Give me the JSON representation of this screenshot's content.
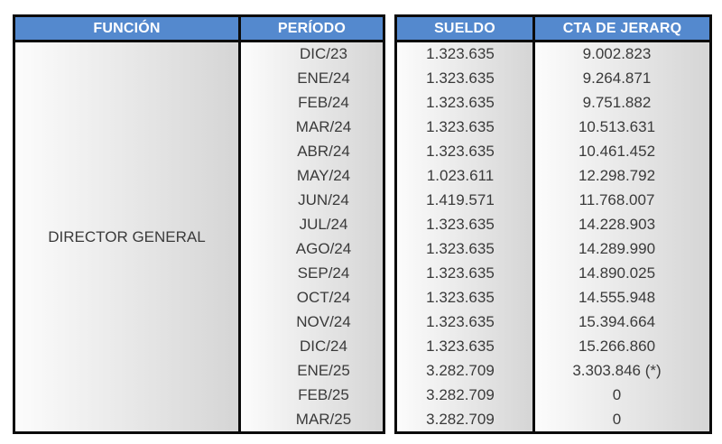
{
  "colors": {
    "header-bg": "#5489ce",
    "header-text": "#ffffff",
    "border": "#0b0b0b",
    "body-text": "#3a3a3a",
    "cell-grad-start": "#fcfcfc",
    "cell-grad-end": "#d5d5d5"
  },
  "table": {
    "headers": {
      "funcion": "FUNCIÓN",
      "periodo": "PERÍODO",
      "sueldo": "SUELDO",
      "cta": "CTA DE JERARQ"
    },
    "funcion_value": "DIRECTOR GENERAL",
    "footnote_marker": "(*)",
    "rows": [
      {
        "periodo": "DIC/23",
        "sueldo": "1.323.635",
        "cta": "9.002.823"
      },
      {
        "periodo": "ENE/24",
        "sueldo": "1.323.635",
        "cta": "9.264.871"
      },
      {
        "periodo": "FEB/24",
        "sueldo": "1.323.635",
        "cta": "9.751.882"
      },
      {
        "periodo": "MAR/24",
        "sueldo": "1.323.635",
        "cta": "10.513.631"
      },
      {
        "periodo": "ABR/24",
        "sueldo": "1.323.635",
        "cta": "10.461.452"
      },
      {
        "periodo": "MAY/24",
        "sueldo": "1.023.611",
        "cta": "12.298.792"
      },
      {
        "periodo": "JUN/24",
        "sueldo": "1.419.571",
        "cta": "11.768.007"
      },
      {
        "periodo": "JUL/24",
        "sueldo": "1.323.635",
        "cta": "14.228.903"
      },
      {
        "periodo": "AGO/24",
        "sueldo": "1.323.635",
        "cta": "14.289.990"
      },
      {
        "periodo": "SEP/24",
        "sueldo": "1.323.635",
        "cta": "14.890.025"
      },
      {
        "periodo": "OCT/24",
        "sueldo": "1.323.635",
        "cta": "14.555.948"
      },
      {
        "periodo": "NOV/24",
        "sueldo": "1.323.635",
        "cta": "15.394.664"
      },
      {
        "periodo": "DIC/24",
        "sueldo": "1.323.635",
        "cta": "15.266.860"
      },
      {
        "periodo": "ENE/25",
        "sueldo": "3.282.709",
        "cta": "3.303.846 (*)"
      },
      {
        "periodo": "FEB/25",
        "sueldo": "3.282.709",
        "cta": "0"
      },
      {
        "periodo": "MAR/25",
        "sueldo": "3.282.709",
        "cta": "0"
      }
    ]
  }
}
